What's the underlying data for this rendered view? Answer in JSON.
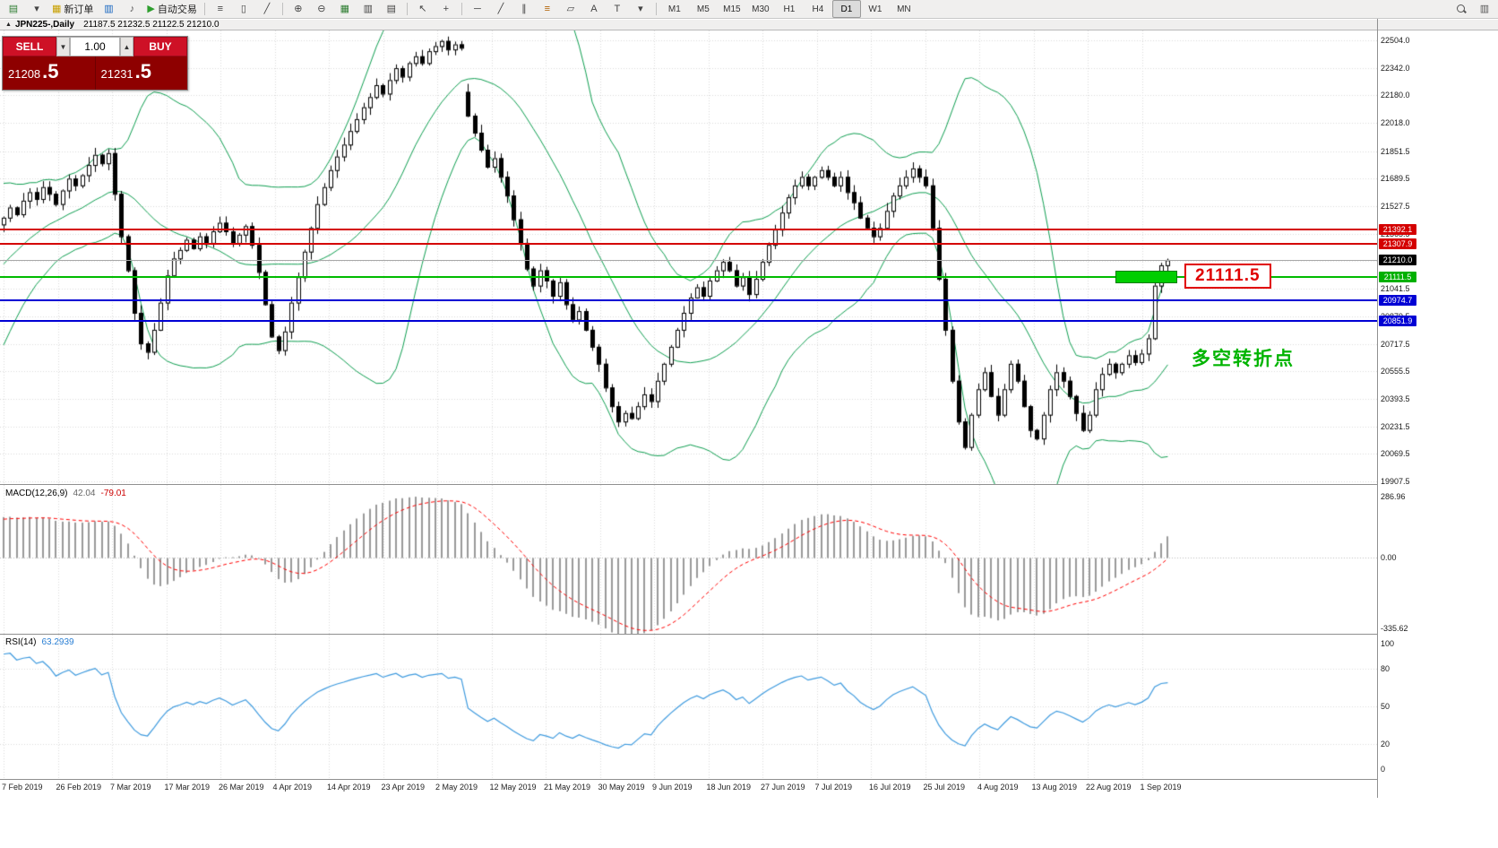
{
  "toolbar": {
    "new_order_label": "新订单",
    "auto_trading_label": "自动交易",
    "items": [
      {
        "type": "button",
        "name": "new-chart-icon",
        "glyph": "▤",
        "color": "#2e7d32"
      },
      {
        "type": "button",
        "name": "new-chart-dropdown-icon",
        "glyph": "▾",
        "color": "#444"
      },
      {
        "type": "button",
        "name": "new-order-button",
        "glyph": "▦",
        "color": "#c8a000",
        "label_key": "new_order_label"
      },
      {
        "type": "button",
        "name": "profiles-icon",
        "glyph": "▥",
        "color": "#1565c0"
      },
      {
        "type": "button",
        "name": "sound-icon",
        "glyph": "♪",
        "color": "#555"
      },
      {
        "type": "button",
        "name": "auto-trading-button",
        "glyph": "▶",
        "color": "#2e9e2e",
        "label_key": "auto_trading_label"
      },
      {
        "type": "separator"
      },
      {
        "type": "button",
        "name": "bar-chart-icon",
        "glyph": "≡",
        "color": "#444"
      },
      {
        "type": "button",
        "name": "candlestick-chart-icon",
        "glyph": "▯",
        "color": "#444"
      },
      {
        "type": "button",
        "name": "line-chart-icon",
        "glyph": "╱",
        "color": "#444"
      },
      {
        "type": "separator"
      },
      {
        "type": "button",
        "name": "zoom-in-icon",
        "glyph": "⊕",
        "color": "#444"
      },
      {
        "type": "button",
        "name": "zoom-out-icon",
        "glyph": "⊖",
        "color": "#444"
      },
      {
        "type": "button",
        "name": "grid-icon",
        "glyph": "▦",
        "color": "#2e7d32"
      },
      {
        "type": "button",
        "name": "tile-windows-icon",
        "glyph": "▥",
        "color": "#444"
      },
      {
        "type": "button",
        "name": "cascade-windows-icon",
        "glyph": "▤",
        "color": "#444"
      },
      {
        "type": "separator"
      },
      {
        "type": "button",
        "name": "cursor-icon",
        "glyph": "↖",
        "color": "#444"
      },
      {
        "type": "button",
        "name": "crosshair-icon",
        "glyph": "+",
        "color": "#444"
      },
      {
        "type": "separator"
      },
      {
        "type": "button",
        "name": "horizontal-line-icon",
        "glyph": "─",
        "color": "#444"
      },
      {
        "type": "button",
        "name": "trendline-icon",
        "glyph": "╱",
        "color": "#444"
      },
      {
        "type": "button",
        "name": "channel-icon",
        "glyph": "∥",
        "color": "#444"
      },
      {
        "type": "button",
        "name": "fibonacci-icon",
        "glyph": "≡",
        "color": "#b06000"
      },
      {
        "type": "button",
        "name": "shapes-icon",
        "glyph": "▱",
        "color": "#444"
      },
      {
        "type": "button",
        "name": "text-icon",
        "glyph": "A",
        "color": "#444"
      },
      {
        "type": "button",
        "name": "label-icon",
        "glyph": "T",
        "color": "#444"
      },
      {
        "type": "button",
        "name": "arrows-dropdown-icon",
        "glyph": "▾",
        "color": "#444"
      },
      {
        "type": "separator"
      },
      {
        "type": "timeframe",
        "name": "tf-m1",
        "label": "M1"
      },
      {
        "type": "timeframe",
        "name": "tf-m5",
        "label": "M5"
      },
      {
        "type": "timeframe",
        "name": "tf-m15",
        "label": "M15"
      },
      {
        "type": "timeframe",
        "name": "tf-m30",
        "label": "M30"
      },
      {
        "type": "timeframe",
        "name": "tf-h1",
        "label": "H1"
      },
      {
        "type": "timeframe",
        "name": "tf-h4",
        "label": "H4"
      },
      {
        "type": "timeframe",
        "name": "tf-d1",
        "label": "D1",
        "active": true
      },
      {
        "type": "timeframe",
        "name": "tf-w1",
        "label": "W1"
      },
      {
        "type": "timeframe",
        "name": "tf-mn",
        "label": "MN"
      },
      {
        "type": "spacer"
      },
      {
        "type": "button",
        "name": "search-icon",
        "glyph": "",
        "color": "#555",
        "magnifier": true
      },
      {
        "type": "button",
        "name": "window-layout-icon",
        "glyph": "▥",
        "color": "#555"
      }
    ]
  },
  "chart": {
    "title_marker": "▲",
    "symbol_period": "JPN225-,Daily",
    "ohlc": "21187.5 21232.5 21122.5 21210.0"
  },
  "one_click": {
    "sell_label": "SELL",
    "buy_label": "BUY",
    "volume": "1.00",
    "dec_glyph": "▼",
    "inc_glyph": "▲",
    "sell_price_main": "21208",
    "sell_price_pips": ".5",
    "buy_price_main": "21231",
    "buy_price_pips": ".5"
  },
  "levels": [
    {
      "name": "resistance-line-upper",
      "value": 21392.1,
      "color": "#d40000",
      "width": 2,
      "tag": "21392.1",
      "tag_color": "#d40000"
    },
    {
      "name": "resistance-line-lower",
      "value": 21307.9,
      "color": "#d40000",
      "width": 2,
      "tag": "21307.9",
      "tag_color": "#d40000"
    },
    {
      "name": "current-price-line",
      "value": 21210.0,
      "color": "#a8a8a8",
      "width": 1,
      "tag": "21210.0",
      "tag_color": "#000000"
    },
    {
      "name": "pivot-line",
      "value": 21111.5,
      "color": "#00bb00",
      "width": 2,
      "tag": "21111.5",
      "tag_color": "#00b000",
      "highlight": true
    },
    {
      "name": "support-line-upper",
      "value": 20974.7,
      "color": "#0000d4",
      "width": 2,
      "tag": "20974.7",
      "tag_color": "#0000d4"
    },
    {
      "name": "support-line-lower",
      "value": 20851.9,
      "color": "#0000d4",
      "width": 2,
      "tag": "20851.9",
      "tag_color": "#0000d4"
    }
  ],
  "annotations": {
    "level_callout": "21111.5",
    "turning_point": "多空转折点"
  },
  "axis": {
    "price_ticks": [
      "22504.0",
      "22342.0",
      "22180.0",
      "22018.0",
      "21851.5",
      "21689.5",
      "21527.5",
      "21365.5",
      "21203.5",
      "21041.5",
      "20879.5",
      "20717.5",
      "20555.5",
      "20393.5",
      "20231.5",
      "20069.5",
      "19907.5"
    ],
    "dates": [
      "7 Feb 2019",
      "26 Feb 2019",
      "7 Mar 2019",
      "17 Mar 2019",
      "26 Mar 2019",
      "4 Apr 2019",
      "14 Apr 2019",
      "23 Apr 2019",
      "2 May 2019",
      "12 May 2019",
      "21 May 2019",
      "30 May 2019",
      "9 Jun 2019",
      "18 Jun 2019",
      "27 Jun 2019",
      "7 Jul 2019",
      "16 Jul 2019",
      "25 Jul 2019",
      "4 Aug 2019",
      "13 Aug 2019",
      "22 Aug 2019",
      "1 Sep 2019"
    ]
  },
  "macd": {
    "label": "MACD(12,26,9)",
    "value_main": "42.04",
    "value_signal": "-79.01",
    "scale": [
      "286.96",
      "0.00",
      "-335.62"
    ]
  },
  "rsi": {
    "label": "RSI(14)",
    "value": "63.2939",
    "scale": [
      "100",
      "80",
      "50",
      "20",
      "0"
    ]
  },
  "chart_data": {
    "type": "candlestick",
    "symbol": "JPN225-",
    "timeframe": "Daily",
    "closes": [
      21460,
      21520,
      21480,
      21560,
      21610,
      21570,
      21640,
      21600,
      21540,
      21620,
      21690,
      21650,
      21710,
      21770,
      21830,
      21780,
      21840,
      21600,
      21350,
      21150,
      20900,
      20720,
      20670,
      20800,
      20960,
      21120,
      21220,
      21270,
      21330,
      21280,
      21350,
      21310,
      21380,
      21430,
      21380,
      21310,
      21360,
      21410,
      21300,
      21140,
      20950,
      20760,
      20680,
      20790,
      20960,
      21110,
      21260,
      21400,
      21540,
      21640,
      21740,
      21820,
      21890,
      21970,
      22040,
      22110,
      22170,
      22240,
      22190,
      22270,
      22340,
      22290,
      22370,
      22410,
      22370,
      22440,
      22470,
      22500,
      22450,
      22480,
      22460,
      22060,
      21960,
      21860,
      21760,
      21810,
      21700,
      21590,
      21450,
      21310,
      21160,
      21060,
      21150,
      21090,
      21000,
      21080,
      20950,
      20860,
      20910,
      20800,
      20700,
      20600,
      20460,
      20350,
      20260,
      20310,
      20280,
      20350,
      20420,
      20380,
      20500,
      20600,
      20700,
      20800,
      20900,
      20990,
      21050,
      21000,
      21090,
      21150,
      21200,
      21150,
      21060,
      21110,
      21010,
      21100,
      21200,
      21300,
      21390,
      21490,
      21580,
      21650,
      21700,
      21650,
      21700,
      21740,
      21700,
      21650,
      21700,
      21610,
      21550,
      21460,
      21400,
      21350,
      21400,
      21500,
      21590,
      21650,
      21700,
      21750,
      21700,
      21650,
      21400,
      21100,
      20800,
      20500,
      20260,
      20110,
      20300,
      20450,
      20550,
      20410,
      20300,
      20450,
      20600,
      20500,
      20350,
      20210,
      20160,
      20300,
      20450,
      20550,
      20500,
      20410,
      20310,
      20210,
      20300,
      20450,
      20540,
      20600,
      20550,
      20600,
      20650,
      20610,
      20660,
      20750,
      21060,
      21180,
      21210
    ],
    "open_overrides": {
      "0": 21420,
      "71": 22200
    },
    "bollinger": {
      "period": 20,
      "deviation": 2
    },
    "macd_params": [
      12,
      26,
      9
    ],
    "rsi_period": 14,
    "price_axis_range": [
      19892,
      22562
    ]
  }
}
